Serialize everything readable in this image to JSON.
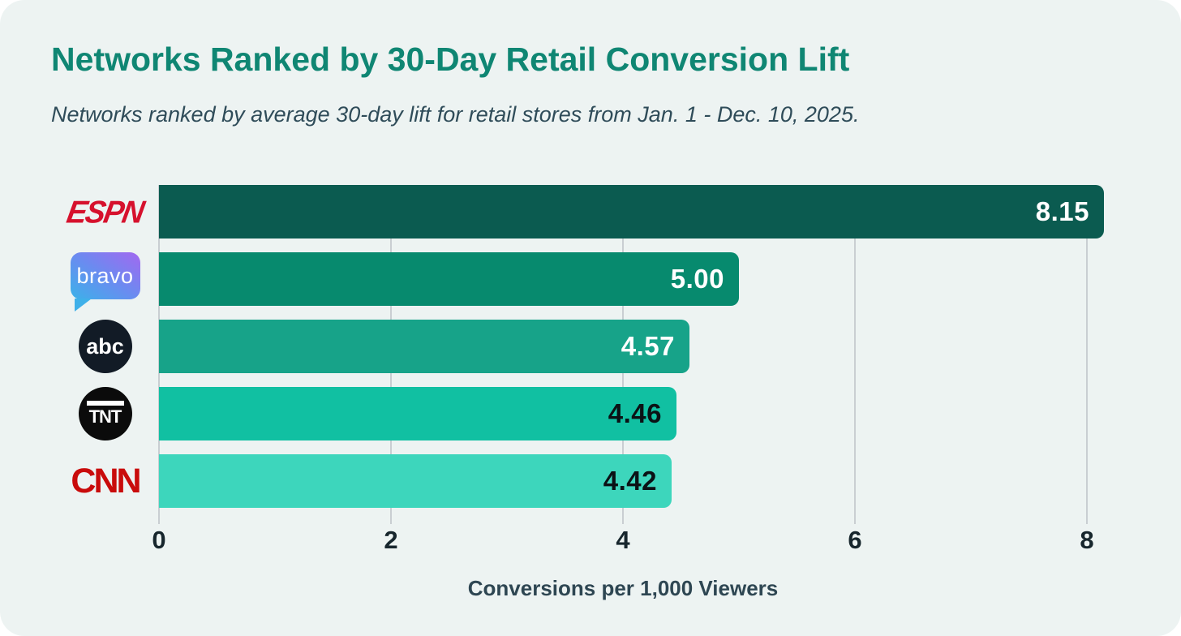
{
  "card": {
    "title": "Networks Ranked by 30-Day Retail Conversion Lift",
    "subtitle": "Networks ranked by average 30-day lift for retail stores from Jan. 1 - Dec. 10, 2025."
  },
  "chart_data": {
    "type": "bar",
    "orientation": "horizontal",
    "title": "Networks Ranked by 30-Day Retail Conversion Lift",
    "subtitle": "Networks ranked by average 30-day lift for retail stores from Jan. 1 - Dec. 10, 2025.",
    "categories": [
      "ESPN",
      "Bravo",
      "ABC",
      "TNT",
      "CNN"
    ],
    "values": [
      8.15,
      5.0,
      4.57,
      4.46,
      4.42
    ],
    "value_labels": [
      "8.15",
      "5.00",
      "4.57",
      "4.46",
      "4.42"
    ],
    "bar_colors": [
      "#0b5b50",
      "#078a6e",
      "#17a389",
      "#11c0a2",
      "#3dd6bc"
    ],
    "value_label_colors": [
      "#ffffff",
      "#ffffff",
      "#ffffff",
      "#0b1215",
      "#0b1215"
    ],
    "xlabel": "Conversions per 1,000 Viewers",
    "ylabel": "",
    "x_ticks": [
      0,
      2,
      4,
      6,
      8
    ],
    "xlim": [
      0,
      8.22
    ],
    "grid": "vertical-gridlines",
    "legend": "none"
  },
  "logos": [
    {
      "id": "espn",
      "text": "ESPN"
    },
    {
      "id": "bravo",
      "text": "bravo"
    },
    {
      "id": "abc",
      "text": "abc"
    },
    {
      "id": "tnt",
      "text": "TNT"
    },
    {
      "id": "cnn",
      "text": "CNN"
    }
  ],
  "colors": {
    "card_background": "#edf3f2",
    "title": "#0f8673",
    "subtitle": "#2f4c59",
    "gridline": "#c9ced2",
    "tick_label": "#17262d",
    "axis_label": "#2e4652",
    "espn_red": "#d6112d",
    "cnn_red": "#c90b0b",
    "abc_navy": "#121b26",
    "tnt_black": "#0b0b0b"
  }
}
